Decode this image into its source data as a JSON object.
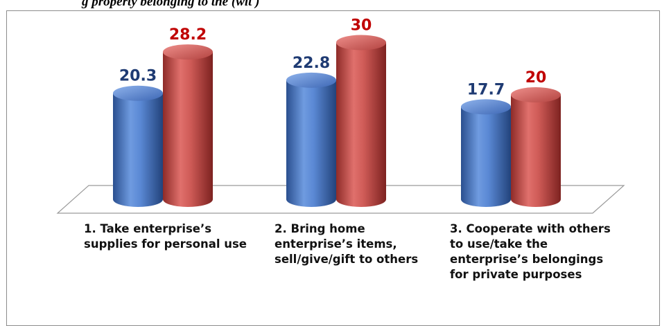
{
  "header": {
    "title_fragment": "g property belonging to the (wit )"
  },
  "chart_data": {
    "type": "bar",
    "style": "3d-cylinder",
    "categories": [
      "1. Take enterprise’s supplies for personal use",
      "2. Bring home enterprise’s items, sell/give/gift to others",
      "3. Cooperate with others to use/take the enterprise’s belongings for private purposes"
    ],
    "series": [
      {
        "values": [
          20.3,
          22.8,
          17.7
        ],
        "color": "#4472c4",
        "label_color": "#1f3b73"
      },
      {
        "values": [
          28.2,
          30,
          20
        ],
        "color": "#c0504d",
        "label_color": "#c00000"
      }
    ],
    "data_labels": {
      "series0": [
        "20.3",
        "22.8",
        "17.7"
      ],
      "series1": [
        "28.2",
        "30",
        "20"
      ]
    },
    "gridlines": false,
    "legend": "none"
  }
}
